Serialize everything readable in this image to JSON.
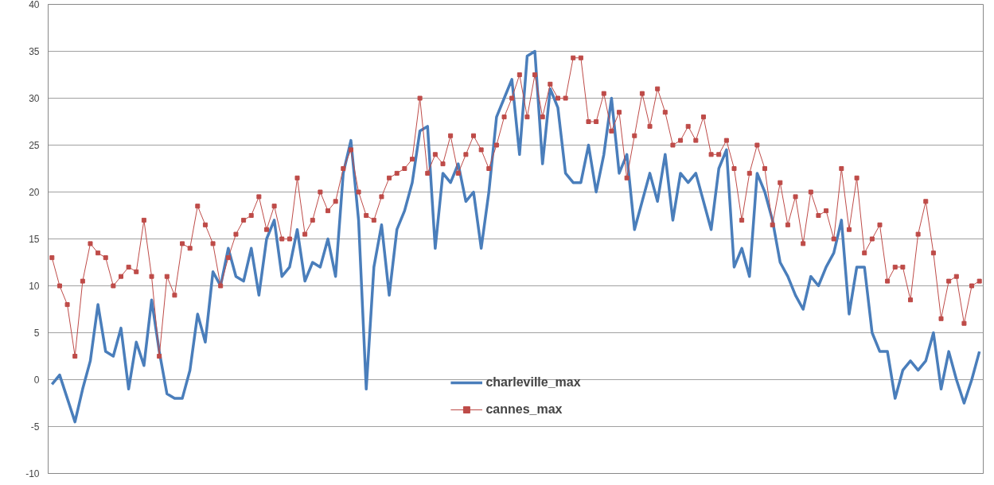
{
  "chart_data": {
    "type": "line",
    "ylim": [
      -10,
      40
    ],
    "yticks": [
      -10,
      -5,
      0,
      5,
      10,
      15,
      20,
      25,
      30,
      35,
      40
    ],
    "tick_labels": "y",
    "grid": "y",
    "legend": "bottom",
    "categories": [
      null,
      null,
      null,
      null,
      null,
      null,
      null,
      null,
      null,
      null,
      null,
      null,
      null,
      null,
      null,
      null,
      null,
      null,
      null,
      null,
      null,
      null,
      null,
      null,
      null,
      null,
      null,
      null,
      null,
      null,
      null,
      null,
      null,
      null,
      null,
      null,
      null,
      null,
      null,
      null,
      null,
      null,
      null,
      null,
      null,
      null,
      null,
      null,
      null,
      null,
      null,
      null,
      null,
      null,
      null,
      null,
      null,
      null,
      null,
      null,
      null,
      null,
      null,
      null,
      null,
      null,
      null,
      null,
      null,
      null,
      null,
      null,
      null,
      null,
      null,
      null,
      null,
      null,
      null,
      null,
      null,
      null,
      null,
      null,
      null,
      null,
      null,
      null,
      null,
      null,
      null,
      null,
      null,
      null,
      null,
      null,
      null,
      null,
      null,
      null,
      null,
      null,
      null,
      null,
      null,
      null,
      null,
      null,
      null,
      null,
      null,
      null,
      null,
      null,
      null,
      null,
      null,
      null,
      null,
      null,
      null,
      null
    ],
    "series": [
      {
        "name": "charleville_max",
        "color": "#4a7ebb",
        "marker": "none",
        "values": [
          -0.5,
          0.5,
          -2,
          -4.5,
          -1,
          2,
          8,
          3,
          2.5,
          5.5,
          -1,
          4,
          1.5,
          8.5,
          3,
          -1.5,
          -2,
          -2,
          1,
          7,
          4,
          11.5,
          10,
          14,
          11,
          10.5,
          14,
          9,
          15,
          17,
          11,
          12,
          16,
          10.5,
          12.5,
          12,
          15,
          11,
          22,
          25.5,
          17,
          -1,
          12,
          16.5,
          9,
          16,
          18,
          21,
          26.5,
          27,
          14,
          22,
          21,
          23,
          19,
          20,
          14,
          20,
          28,
          30,
          32,
          24,
          34.5,
          35,
          23,
          31,
          29,
          22,
          21,
          21,
          25,
          20,
          24,
          30,
          22,
          24,
          16,
          19,
          22,
          19,
          24,
          17,
          22,
          21,
          22,
          19,
          16,
          22.5,
          24.5,
          12,
          14,
          11,
          22,
          20,
          17,
          12.5,
          11,
          9,
          7.5,
          11,
          10,
          12,
          13.5,
          17,
          7,
          12,
          12,
          5,
          3,
          3,
          -2,
          1,
          2,
          1,
          2,
          5,
          -1,
          3,
          0,
          -2.5,
          0,
          3
        ]
      },
      {
        "name": "cannes_max",
        "color": "#be4b48",
        "marker": "square",
        "values": [
          13,
          10,
          8,
          2.5,
          10.5,
          14.5,
          13.5,
          13,
          10,
          11,
          12,
          11.5,
          17,
          11,
          2.5,
          11,
          9,
          14.5,
          14,
          18.5,
          16.5,
          14.5,
          10,
          13,
          15.5,
          17,
          17.5,
          19.5,
          16,
          18.5,
          15,
          15,
          21.5,
          15.5,
          17,
          20,
          18,
          19,
          22.5,
          24.5,
          20,
          17.5,
          17,
          19.5,
          21.5,
          22,
          22.5,
          23.5,
          30,
          22,
          24,
          23,
          26,
          22,
          24,
          26,
          24.5,
          22.5,
          25,
          28,
          30,
          32.5,
          28,
          32.5,
          28,
          31.5,
          30,
          30,
          34.3,
          34.3,
          27.5,
          27.5,
          30.5,
          26.5,
          28.5,
          21.5,
          26,
          30.5,
          27,
          31,
          28.5,
          25,
          25.5,
          27,
          25.5,
          28,
          24,
          24,
          25.5,
          22.5,
          17,
          22,
          25,
          22.5,
          16.5,
          21,
          16.5,
          19.5,
          14.5,
          20,
          17.5,
          18,
          15,
          22.5,
          16,
          21.5,
          13.5,
          15,
          16.5,
          10.5,
          12,
          12,
          8.5,
          15.5,
          19,
          13.5,
          6.5,
          10.5,
          11,
          6,
          10,
          10.5
        ]
      }
    ]
  }
}
